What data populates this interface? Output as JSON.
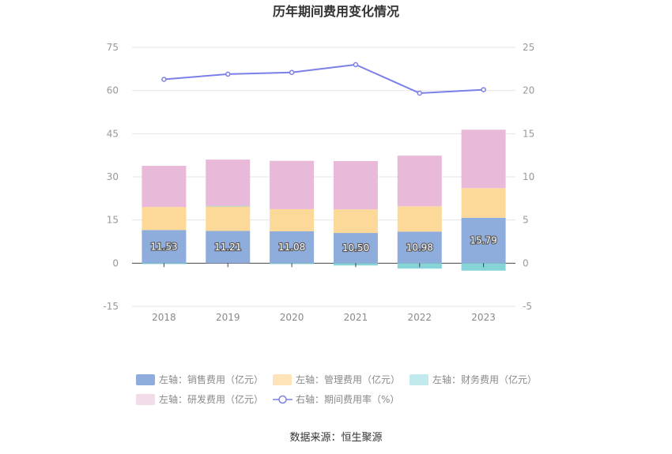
{
  "chart_data": {
    "type": "bar",
    "title": "历年期间费用变化情况",
    "categories": [
      "2018",
      "2019",
      "2020",
      "2021",
      "2022",
      "2023"
    ],
    "left_axis": {
      "min": -15,
      "max": 75,
      "ticks": [
        "-15",
        "0",
        "15",
        "30",
        "45",
        "60",
        "75"
      ]
    },
    "right_axis": {
      "min": -5,
      "max": 25,
      "ticks": [
        "-5",
        "0",
        "5",
        "10",
        "15",
        "20",
        "25"
      ]
    },
    "series": [
      {
        "name": "左轴：销售费用（亿元）",
        "axis": "left",
        "stack": true,
        "color": "#8eacdc",
        "values": [
          11.53,
          11.21,
          11.08,
          10.5,
          10.98,
          15.79
        ],
        "labels": [
          "11.53",
          "11.21",
          "11.08",
          "10.50",
          "10.98",
          "15.79"
        ]
      },
      {
        "name": "左轴：管理费用（亿元）",
        "axis": "left",
        "stack": true,
        "color": "#fdd999",
        "legend_color": "#fee3b8",
        "values": [
          8.0,
          8.5,
          7.7,
          8.2,
          8.8,
          10.3
        ]
      },
      {
        "name": "左轴：财务费用（亿元）",
        "axis": "left",
        "stack": true,
        "color": "#86d3d8",
        "legend_color": "#c2e9ec",
        "values": [
          -0.3,
          0.2,
          -0.3,
          -0.8,
          -1.9,
          -2.6
        ]
      },
      {
        "name": "左轴：研发费用（亿元）",
        "axis": "left",
        "stack": true,
        "color": "#e8b9d9",
        "legend_color": "#f2dcea",
        "values": [
          14.3,
          16.1,
          16.8,
          16.8,
          17.6,
          20.3
        ]
      },
      {
        "name": "右轴：期间费用率（%）",
        "axis": "right",
        "type": "line",
        "color": "#7b7fe8",
        "values": [
          21.3,
          21.9,
          22.1,
          23.0,
          19.7,
          20.1
        ]
      }
    ],
    "source": "数据来源：恒生聚源"
  }
}
